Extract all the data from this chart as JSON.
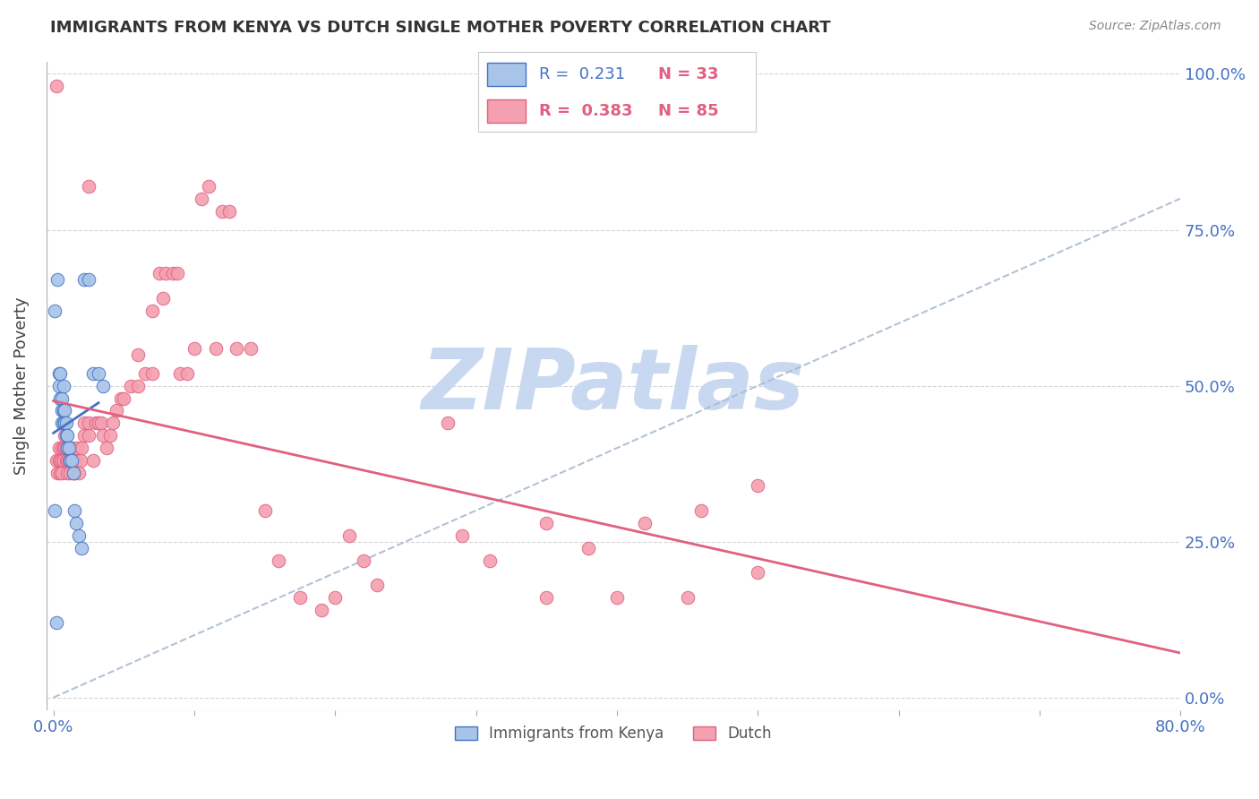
{
  "title": "IMMIGRANTS FROM KENYA VS DUTCH SINGLE MOTHER POVERTY CORRELATION CHART",
  "source": "Source: ZipAtlas.com",
  "ylabel": "Single Mother Poverty",
  "ytick_labels": [
    "0.0%",
    "25.0%",
    "50.0%",
    "75.0%",
    "100.0%"
  ],
  "ytick_values": [
    0,
    0.25,
    0.5,
    0.75,
    1.0
  ],
  "xmin": 0.0,
  "xmax": 0.8,
  "ymin": 0.0,
  "ymax": 1.0,
  "kenya_color": "#a8c4e8",
  "dutch_color": "#f4a0b0",
  "kenya_line_color": "#4472c4",
  "dutch_line_color": "#e06080",
  "diagonal_color": "#aabcd0",
  "watermark_color": "#c8d8f0",
  "axis_color": "#4472c4",
  "background_color": "#ffffff",
  "grid_color": "#cccccc",
  "kenya_points": [
    [
      0.001,
      0.62
    ],
    [
      0.003,
      0.67
    ],
    [
      0.004,
      0.52
    ],
    [
      0.004,
      0.5
    ],
    [
      0.005,
      0.52
    ],
    [
      0.005,
      0.48
    ],
    [
      0.006,
      0.48
    ],
    [
      0.006,
      0.44
    ],
    [
      0.006,
      0.46
    ],
    [
      0.007,
      0.5
    ],
    [
      0.007,
      0.46
    ],
    [
      0.007,
      0.44
    ],
    [
      0.008,
      0.46
    ],
    [
      0.008,
      0.44
    ],
    [
      0.009,
      0.44
    ],
    [
      0.009,
      0.42
    ],
    [
      0.01,
      0.42
    ],
    [
      0.01,
      0.4
    ],
    [
      0.011,
      0.4
    ],
    [
      0.012,
      0.38
    ],
    [
      0.013,
      0.38
    ],
    [
      0.014,
      0.36
    ],
    [
      0.015,
      0.3
    ],
    [
      0.016,
      0.28
    ],
    [
      0.018,
      0.26
    ],
    [
      0.02,
      0.24
    ],
    [
      0.022,
      0.67
    ],
    [
      0.025,
      0.67
    ],
    [
      0.028,
      0.52
    ],
    [
      0.032,
      0.52
    ],
    [
      0.035,
      0.5
    ],
    [
      0.001,
      0.3
    ],
    [
      0.002,
      0.12
    ]
  ],
  "dutch_points": [
    [
      0.002,
      0.38
    ],
    [
      0.003,
      0.36
    ],
    [
      0.004,
      0.4
    ],
    [
      0.004,
      0.38
    ],
    [
      0.005,
      0.38
    ],
    [
      0.005,
      0.36
    ],
    [
      0.006,
      0.4
    ],
    [
      0.006,
      0.38
    ],
    [
      0.006,
      0.36
    ],
    [
      0.007,
      0.4
    ],
    [
      0.007,
      0.38
    ],
    [
      0.008,
      0.42
    ],
    [
      0.008,
      0.4
    ],
    [
      0.009,
      0.4
    ],
    [
      0.009,
      0.38
    ],
    [
      0.01,
      0.38
    ],
    [
      0.01,
      0.36
    ],
    [
      0.011,
      0.4
    ],
    [
      0.011,
      0.38
    ],
    [
      0.012,
      0.38
    ],
    [
      0.012,
      0.36
    ],
    [
      0.013,
      0.4
    ],
    [
      0.013,
      0.38
    ],
    [
      0.014,
      0.38
    ],
    [
      0.014,
      0.36
    ],
    [
      0.015,
      0.38
    ],
    [
      0.015,
      0.36
    ],
    [
      0.016,
      0.38
    ],
    [
      0.017,
      0.4
    ],
    [
      0.018,
      0.36
    ],
    [
      0.019,
      0.38
    ],
    [
      0.02,
      0.4
    ],
    [
      0.022,
      0.44
    ],
    [
      0.022,
      0.42
    ],
    [
      0.025,
      0.44
    ],
    [
      0.025,
      0.42
    ],
    [
      0.028,
      0.38
    ],
    [
      0.03,
      0.44
    ],
    [
      0.032,
      0.44
    ],
    [
      0.034,
      0.44
    ],
    [
      0.035,
      0.42
    ],
    [
      0.038,
      0.4
    ],
    [
      0.04,
      0.42
    ],
    [
      0.042,
      0.44
    ],
    [
      0.045,
      0.46
    ],
    [
      0.048,
      0.48
    ],
    [
      0.05,
      0.48
    ],
    [
      0.055,
      0.5
    ],
    [
      0.06,
      0.5
    ],
    [
      0.065,
      0.52
    ],
    [
      0.07,
      0.52
    ],
    [
      0.075,
      0.68
    ],
    [
      0.078,
      0.64
    ],
    [
      0.08,
      0.68
    ],
    [
      0.085,
      0.68
    ],
    [
      0.088,
      0.68
    ],
    [
      0.09,
      0.52
    ],
    [
      0.095,
      0.52
    ],
    [
      0.1,
      0.56
    ],
    [
      0.105,
      0.8
    ],
    [
      0.11,
      0.82
    ],
    [
      0.115,
      0.56
    ],
    [
      0.12,
      0.78
    ],
    [
      0.125,
      0.78
    ],
    [
      0.13,
      0.56
    ],
    [
      0.14,
      0.56
    ],
    [
      0.15,
      0.3
    ],
    [
      0.16,
      0.22
    ],
    [
      0.175,
      0.16
    ],
    [
      0.002,
      0.98
    ],
    [
      0.025,
      0.82
    ],
    [
      0.19,
      0.14
    ],
    [
      0.2,
      0.16
    ],
    [
      0.21,
      0.26
    ],
    [
      0.22,
      0.22
    ],
    [
      0.23,
      0.18
    ],
    [
      0.29,
      0.26
    ],
    [
      0.31,
      0.22
    ],
    [
      0.35,
      0.28
    ],
    [
      0.38,
      0.24
    ],
    [
      0.42,
      0.28
    ],
    [
      0.46,
      0.3
    ],
    [
      0.5,
      0.34
    ],
    [
      0.06,
      0.55
    ],
    [
      0.07,
      0.62
    ],
    [
      0.35,
      0.16
    ],
    [
      0.4,
      0.16
    ],
    [
      0.45,
      0.16
    ],
    [
      0.5,
      0.2
    ],
    [
      0.28,
      0.44
    ]
  ]
}
